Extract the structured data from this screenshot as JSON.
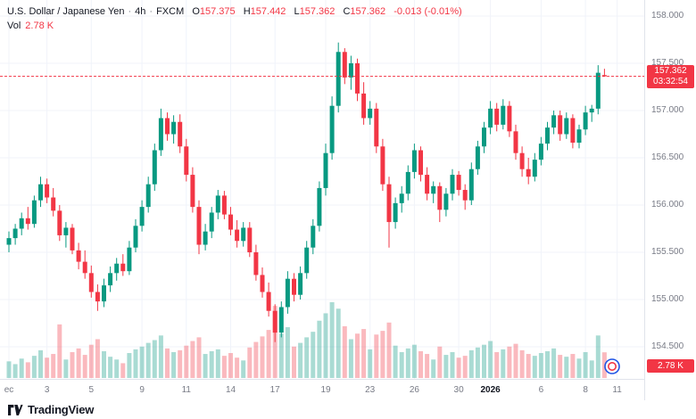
{
  "header": {
    "symbol": "U.S. Dollar / Japanese Yen",
    "sep": "·",
    "interval": "4h",
    "exchange": "FXCM",
    "ohlc": {
      "o_label": "O",
      "o": "157.375",
      "h_label": "H",
      "h": "157.442",
      "l_label": "L",
      "l": "157.362",
      "c_label": "C",
      "c": "157.362",
      "change": "-0.013 (-0.01%)"
    },
    "vol_label": "Vol",
    "vol_value": "2.78 K"
  },
  "price_axis": {
    "price_badge": {
      "price": "157.362",
      "countdown": "03:32:54"
    },
    "vol_badge": "2.78 K"
  },
  "footer": {
    "brand": "TradingView"
  },
  "colors": {
    "up": "#089981",
    "down": "#F23645",
    "vol_up": "rgba(8,153,129,0.35)",
    "vol_down": "rgba(242,54,69,0.35)",
    "grid": "#F0F3FA",
    "axis_text": "#787B86",
    "text": "#131722",
    "badge_bg": "#F23645"
  },
  "chart_data": {
    "type": "candlestick",
    "title": "U.S. Dollar / Japanese Yen · 4h · FXCM",
    "legend": [
      "price candles",
      "volume"
    ],
    "current_price": 157.362,
    "countdown": "03:32:54",
    "last_volume_k": 2.78,
    "volume_unit": "K",
    "visible_price_range": [
      154.16,
      158.17
    ],
    "price_ticks": [
      158.0,
      157.5,
      157.0,
      156.5,
      156.0,
      155.5,
      155.0,
      154.5
    ],
    "time_ticks": [
      {
        "label": "ec",
        "i": 0,
        "major": false
      },
      {
        "label": "3",
        "i": 6,
        "major": false
      },
      {
        "label": "5",
        "i": 13,
        "major": false
      },
      {
        "label": "9",
        "i": 21,
        "major": false
      },
      {
        "label": "11",
        "i": 28,
        "major": false
      },
      {
        "label": "14",
        "i": 35,
        "major": false
      },
      {
        "label": "17",
        "i": 42,
        "major": false
      },
      {
        "label": "19",
        "i": 50,
        "major": false
      },
      {
        "label": "23",
        "i": 57,
        "major": false
      },
      {
        "label": "26",
        "i": 64,
        "major": false
      },
      {
        "label": "30",
        "i": 71,
        "major": false
      },
      {
        "label": "2026",
        "i": 76,
        "major": true
      },
      {
        "label": "6",
        "i": 84,
        "major": false
      },
      {
        "label": "8",
        "i": 91,
        "major": false
      },
      {
        "label": "11",
        "i": 96,
        "major": false
      }
    ],
    "candles_format": [
      "open",
      "high",
      "low",
      "close",
      "volume_k"
    ],
    "candles": [
      [
        155.58,
        155.72,
        155.5,
        155.65,
        1.8
      ],
      [
        155.65,
        155.8,
        155.58,
        155.75,
        1.5
      ],
      [
        155.75,
        155.92,
        155.68,
        155.86,
        2.1
      ],
      [
        155.86,
        155.98,
        155.74,
        155.8,
        1.7
      ],
      [
        155.8,
        156.1,
        155.76,
        156.05,
        2.4
      ],
      [
        156.05,
        156.3,
        155.98,
        156.22,
        3.0
      ],
      [
        156.22,
        156.28,
        156.02,
        156.08,
        2.2
      ],
      [
        156.08,
        156.18,
        155.88,
        155.94,
        2.6
      ],
      [
        155.94,
        156.0,
        155.62,
        155.68,
        5.8
      ],
      [
        155.68,
        155.82,
        155.55,
        155.76,
        2.0
      ],
      [
        155.76,
        155.8,
        155.48,
        155.52,
        2.8
      ],
      [
        155.52,
        155.6,
        155.32,
        155.4,
        3.2
      ],
      [
        155.4,
        155.52,
        155.22,
        155.28,
        2.5
      ],
      [
        155.28,
        155.36,
        155.02,
        155.08,
        3.6
      ],
      [
        155.08,
        155.16,
        154.88,
        154.98,
        4.2
      ],
      [
        154.98,
        155.22,
        154.92,
        155.15,
        2.9
      ],
      [
        155.15,
        155.35,
        155.08,
        155.28,
        2.3
      ],
      [
        155.28,
        155.44,
        155.2,
        155.38,
        2.0
      ],
      [
        155.38,
        155.48,
        155.25,
        155.3,
        1.6
      ],
      [
        155.3,
        155.62,
        155.26,
        155.55,
        2.7
      ],
      [
        155.55,
        155.85,
        155.5,
        155.78,
        3.1
      ],
      [
        155.78,
        156.05,
        155.72,
        155.98,
        3.4
      ],
      [
        155.98,
        156.3,
        155.92,
        156.22,
        3.8
      ],
      [
        156.22,
        156.65,
        156.15,
        156.58,
        4.1
      ],
      [
        156.58,
        157.02,
        156.52,
        156.92,
        4.6
      ],
      [
        156.92,
        156.98,
        156.68,
        156.75,
        3.2
      ],
      [
        156.75,
        156.95,
        156.65,
        156.88,
        2.8
      ],
      [
        156.88,
        156.96,
        156.55,
        156.62,
        3.0
      ],
      [
        156.62,
        156.7,
        156.25,
        156.32,
        3.5
      ],
      [
        156.32,
        156.4,
        155.92,
        155.98,
        4.0
      ],
      [
        155.98,
        156.05,
        155.48,
        155.58,
        4.4
      ],
      [
        155.58,
        155.8,
        155.52,
        155.72,
        2.6
      ],
      [
        155.72,
        155.98,
        155.65,
        155.92,
        2.9
      ],
      [
        155.92,
        156.16,
        155.85,
        156.1,
        3.1
      ],
      [
        156.1,
        156.15,
        155.85,
        155.9,
        2.4
      ],
      [
        155.9,
        155.98,
        155.68,
        155.74,
        2.7
      ],
      [
        155.74,
        155.84,
        155.55,
        155.62,
        2.2
      ],
      [
        155.62,
        155.82,
        155.56,
        155.76,
        1.9
      ],
      [
        155.76,
        155.82,
        155.45,
        155.5,
        3.3
      ],
      [
        155.5,
        155.58,
        155.2,
        155.26,
        3.9
      ],
      [
        155.26,
        155.34,
        155.02,
        155.08,
        4.5
      ],
      [
        155.08,
        155.18,
        154.82,
        154.88,
        5.2
      ],
      [
        154.88,
        154.95,
        154.55,
        154.65,
        7.8
      ],
      [
        154.65,
        154.98,
        154.6,
        154.92,
        4.8
      ],
      [
        154.92,
        155.3,
        154.85,
        155.22,
        5.5
      ],
      [
        155.22,
        155.28,
        154.98,
        155.05,
        3.4
      ],
      [
        155.05,
        155.35,
        155.0,
        155.28,
        3.8
      ],
      [
        155.28,
        155.62,
        155.22,
        155.55,
        4.4
      ],
      [
        155.55,
        155.85,
        155.48,
        155.78,
        5.0
      ],
      [
        155.78,
        156.25,
        155.72,
        156.18,
        6.2
      ],
      [
        156.18,
        156.65,
        156.1,
        156.55,
        7.0
      ],
      [
        156.55,
        157.15,
        156.48,
        157.05,
        8.2
      ],
      [
        157.05,
        157.72,
        156.98,
        157.62,
        7.5
      ],
      [
        157.62,
        157.66,
        157.28,
        157.35,
        5.6
      ],
      [
        157.35,
        157.58,
        157.22,
        157.5,
        4.2
      ],
      [
        157.5,
        157.55,
        157.1,
        157.18,
        4.8
      ],
      [
        157.18,
        157.3,
        156.85,
        156.92,
        5.3
      ],
      [
        156.92,
        157.1,
        156.85,
        157.02,
        3.1
      ],
      [
        157.02,
        157.08,
        156.55,
        156.62,
        4.7
      ],
      [
        156.62,
        156.7,
        156.15,
        156.22,
        5.1
      ],
      [
        156.22,
        156.3,
        155.55,
        155.82,
        6.0
      ],
      [
        155.82,
        156.08,
        155.75,
        156.02,
        3.5
      ],
      [
        156.02,
        156.2,
        155.92,
        156.12,
        2.8
      ],
      [
        156.12,
        156.42,
        156.05,
        156.35,
        3.2
      ],
      [
        156.35,
        156.65,
        156.28,
        156.58,
        3.6
      ],
      [
        156.58,
        156.62,
        156.25,
        156.32,
        2.9
      ],
      [
        156.32,
        156.4,
        156.05,
        156.12,
        2.6
      ],
      [
        156.12,
        156.25,
        156.02,
        156.2,
        2.0
      ],
      [
        156.2,
        156.24,
        155.82,
        155.95,
        3.4
      ],
      [
        155.95,
        156.18,
        155.88,
        156.12,
        2.5
      ],
      [
        156.12,
        156.38,
        156.05,
        156.32,
        2.8
      ],
      [
        156.32,
        156.36,
        156.1,
        156.16,
        2.2
      ],
      [
        156.16,
        156.22,
        155.95,
        156.05,
        2.4
      ],
      [
        156.05,
        156.45,
        156.0,
        156.38,
        3.0
      ],
      [
        156.38,
        156.68,
        156.32,
        156.62,
        3.3
      ],
      [
        156.62,
        156.88,
        156.55,
        156.82,
        3.6
      ],
      [
        156.82,
        157.1,
        156.75,
        157.02,
        4.0
      ],
      [
        157.02,
        157.08,
        156.78,
        156.85,
        2.8
      ],
      [
        156.85,
        157.12,
        156.8,
        157.05,
        3.1
      ],
      [
        157.05,
        157.1,
        156.72,
        156.78,
        3.4
      ],
      [
        156.78,
        156.85,
        156.48,
        156.55,
        3.7
      ],
      [
        156.55,
        156.62,
        156.3,
        156.38,
        3.0
      ],
      [
        156.38,
        156.5,
        156.22,
        156.3,
        2.6
      ],
      [
        156.3,
        156.55,
        156.25,
        156.48,
        2.4
      ],
      [
        156.48,
        156.72,
        156.42,
        156.65,
        2.7
      ],
      [
        156.65,
        156.88,
        156.58,
        156.82,
        2.9
      ],
      [
        156.82,
        157.0,
        156.75,
        156.95,
        3.2
      ],
      [
        156.95,
        157.0,
        156.68,
        156.75,
        2.5
      ],
      [
        156.75,
        156.98,
        156.7,
        156.92,
        2.3
      ],
      [
        156.92,
        156.96,
        156.6,
        156.66,
        2.6
      ],
      [
        156.66,
        156.85,
        156.6,
        156.8,
        2.1
      ],
      [
        156.8,
        157.05,
        156.74,
        156.98,
        2.8
      ],
      [
        156.98,
        157.06,
        156.88,
        157.02,
        1.9
      ],
      [
        157.02,
        157.48,
        156.96,
        157.4,
        4.6
      ],
      [
        157.375,
        157.442,
        157.362,
        157.362,
        2.78
      ]
    ]
  }
}
